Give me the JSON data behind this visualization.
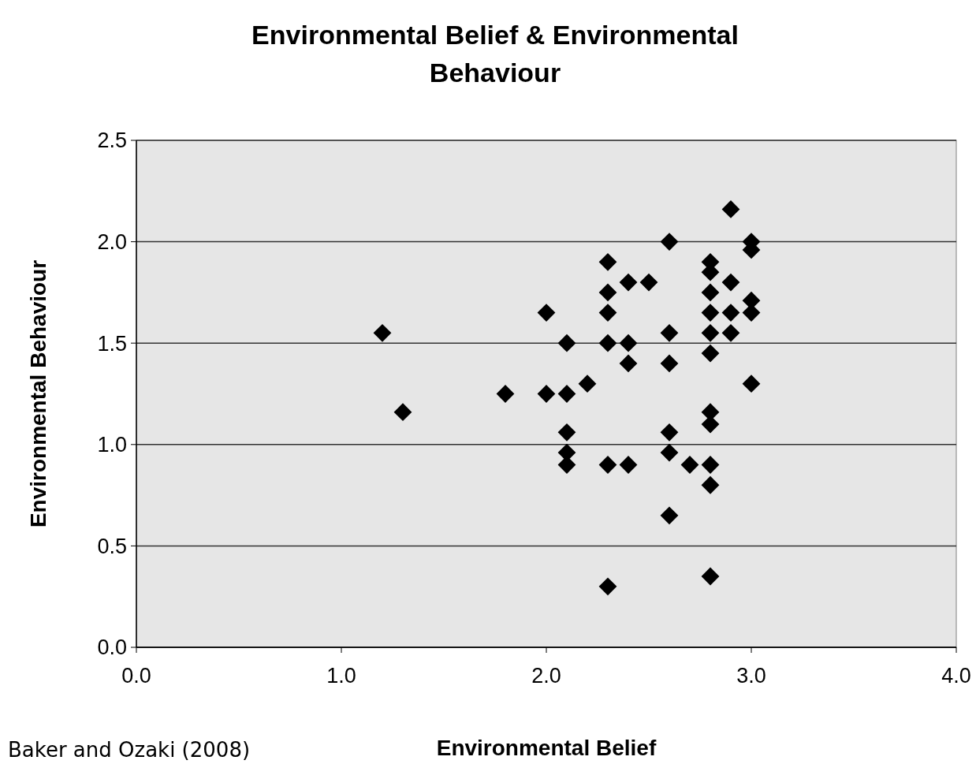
{
  "chart_data": {
    "type": "scatter",
    "title": "Environmental Belief & Environmental Behaviour",
    "xlabel": "Environmental Belief",
    "ylabel": "Environmental Behaviour",
    "annotations": [
      "Baker and Ozaki (2008)"
    ],
    "x": [
      1.2,
      1.3,
      1.8,
      2.0,
      2.0,
      2.1,
      2.1,
      2.1,
      2.1,
      2.1,
      2.2,
      2.3,
      2.3,
      2.3,
      2.3,
      2.3,
      2.3,
      2.4,
      2.4,
      2.4,
      2.4,
      2.5,
      2.6,
      2.6,
      2.6,
      2.6,
      2.6,
      2.6,
      2.7,
      2.8,
      2.8,
      2.8,
      2.8,
      2.8,
      2.8,
      2.8,
      2.8,
      2.8,
      2.8,
      2.8,
      2.9,
      2.9,
      2.9,
      2.9,
      3.0,
      3.0,
      3.0,
      3.0,
      3.0
    ],
    "values": [
      1.55,
      1.16,
      1.25,
      1.65,
      1.25,
      1.5,
      1.25,
      1.06,
      0.96,
      0.9,
      1.3,
      1.9,
      1.75,
      1.65,
      1.5,
      0.9,
      0.3,
      1.8,
      1.5,
      1.4,
      0.9,
      1.8,
      2.0,
      1.55,
      1.4,
      1.06,
      0.96,
      0.65,
      0.9,
      1.9,
      1.85,
      1.75,
      1.65,
      1.55,
      1.45,
      1.16,
      1.1,
      0.9,
      0.8,
      0.35,
      2.16,
      1.8,
      1.65,
      1.55,
      2.0,
      1.96,
      1.71,
      1.65,
      1.3
    ],
    "color": "#000000",
    "marker": "diamond",
    "grid": "y",
    "xlim": [
      0,
      4
    ],
    "xticks": [
      {
        "value": 0,
        "label": "0.0"
      },
      {
        "value": 1,
        "label": "1.0"
      },
      {
        "value": 2,
        "label": "2.0"
      },
      {
        "value": 3,
        "label": "3.0"
      },
      {
        "value": 4,
        "label": "4.0"
      }
    ],
    "ylim": [
      0,
      2.5
    ],
    "yticks": [
      {
        "value": 0,
        "label": "0.0"
      },
      {
        "value": 0.5,
        "label": "0.5"
      },
      {
        "value": 1,
        "label": "1.0"
      },
      {
        "value": 1.5,
        "label": "1.5"
      },
      {
        "value": 2,
        "label": "2.0"
      },
      {
        "value": 2.5,
        "label": "2.5"
      }
    ]
  }
}
